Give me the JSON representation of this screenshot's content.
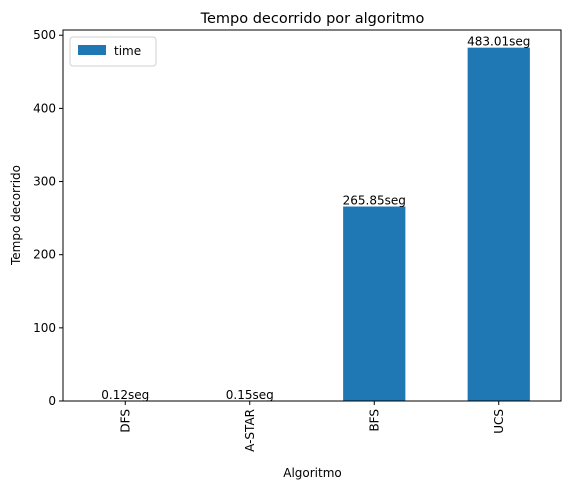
{
  "chart_data": {
    "type": "bar",
    "title": "Tempo decorrido por algoritmo",
    "xlabel": "Algoritmo",
    "ylabel": "Tempo decorrido",
    "categories": [
      "DFS",
      "A-STAR",
      "BFS",
      "UCS"
    ],
    "series": [
      {
        "name": "time",
        "values": [
          0.12,
          0.15,
          265.85,
          483.01
        ],
        "labels": [
          "0.12seg",
          "0.15seg",
          "265.85seg",
          "483.01seg"
        ]
      }
    ],
    "ylim": [
      0,
      507.16
    ],
    "yticks": [
      0,
      100,
      200,
      300,
      400,
      500
    ],
    "legend_position": "top-left",
    "grid": false,
    "colors": {
      "bar": "#1f77b4",
      "axis": "#000000",
      "legend_border": "#d0d0d0"
    }
  }
}
